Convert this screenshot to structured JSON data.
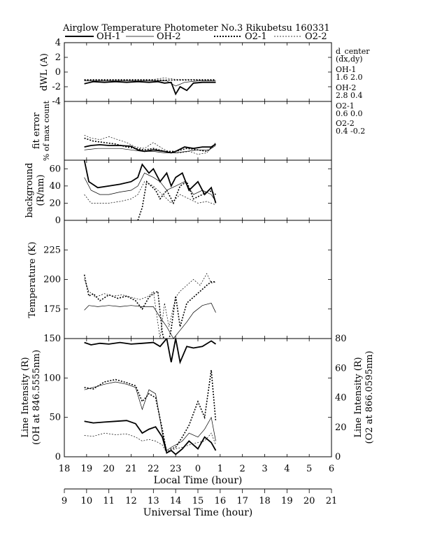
{
  "title": "Airglow Temperature Photometer No.3   Rikubetsu     160331",
  "legend": [
    {
      "name": "OH-1",
      "style": "thick-solid"
    },
    {
      "name": "OH-2",
      "style": "thin-solid"
    },
    {
      "name": "O2-1",
      "style": "thick-dotted"
    },
    {
      "name": "O2-2",
      "style": "thin-dotted"
    }
  ],
  "side_text": {
    "lines": [
      "d_center",
      "(dx,dy)",
      "OH-1",
      "1.6   2.0",
      "OH-2",
      "2.8   0.4",
      "O2-1",
      "0.6   0.0",
      "O2-2",
      "0.4   -0.2"
    ]
  },
  "axes": {
    "local_time_label": "Local Time (hour)",
    "universal_time_label": "Universal Time (hour)",
    "local_ticks": [
      "18",
      "19",
      "20",
      "21",
      "22",
      "23",
      "0",
      "1",
      "2",
      "3",
      "4",
      "5",
      "6"
    ],
    "ut_ticks": [
      "9",
      "10",
      "11",
      "12",
      "13",
      "14",
      "15",
      "16",
      "17",
      "18",
      "19",
      "20",
      "21"
    ]
  },
  "chart_data": [
    {
      "type": "line",
      "panel": "dWL",
      "ylabel": "dWL (A)",
      "ylim": [
        -4,
        4
      ],
      "yticks": [
        "-4",
        "-2",
        "0",
        "2",
        "4"
      ],
      "x_axis": "Local Time (hour), 18 to 30",
      "series": [
        {
          "name": "OH-1",
          "x": [
            18.9,
            19.3,
            19.8,
            20.3,
            20.8,
            21.3,
            21.8,
            22.2,
            22.5,
            22.8,
            23.0,
            23.2,
            23.5,
            23.8,
            24.2,
            24.6,
            24.8
          ],
          "y": [
            -1.6,
            -1.3,
            -1.4,
            -1.3,
            -1.4,
            -1.3,
            -1.4,
            -1.3,
            -1.5,
            -1.4,
            -3.0,
            -2.0,
            -2.5,
            -1.5,
            -1.4,
            -1.4,
            -1.4
          ]
        },
        {
          "name": "OH-2",
          "x": [
            18.9,
            20.0,
            21.0,
            22.0,
            22.6,
            23.0,
            23.4,
            24.0,
            24.8
          ],
          "y": [
            -1.2,
            -1.2,
            -1.2,
            -1.2,
            -1.2,
            -1.9,
            -1.4,
            -1.2,
            -1.2
          ]
        },
        {
          "name": "O2-1",
          "x": [
            18.9,
            20.0,
            21.0,
            22.0,
            23.0,
            24.0,
            24.8
          ],
          "y": [
            -1.1,
            -1.1,
            -1.1,
            -1.1,
            -1.1,
            -1.1,
            -1.1
          ]
        },
        {
          "name": "O2-2",
          "x": [
            18.9,
            20.0,
            21.0,
            22.0,
            22.5,
            23.0,
            23.5,
            24.0,
            24.8
          ],
          "y": [
            -1.0,
            -1.0,
            -1.0,
            -1.0,
            -0.8,
            -1.0,
            -1.0,
            -1.0,
            -1.0
          ]
        }
      ]
    },
    {
      "type": "line",
      "panel": "fit error",
      "ylabel": "fit error",
      "ylabel2": "% of max count",
      "ylim": [
        0,
        4
      ],
      "yticks": [],
      "series": [
        {
          "name": "OH-1",
          "x": [
            18.9,
            19.2,
            19.6,
            20.0,
            20.5,
            21.0,
            21.3,
            21.6,
            22.0,
            22.5,
            22.8,
            23.0,
            23.4,
            23.8,
            24.2,
            24.6,
            24.8
          ],
          "y": [
            0.9,
            1.0,
            1.05,
            1.0,
            1.0,
            0.95,
            0.7,
            0.6,
            0.7,
            0.6,
            0.5,
            0.6,
            0.9,
            0.8,
            0.9,
            0.9,
            1.1
          ]
        },
        {
          "name": "OH-2",
          "x": [
            18.9,
            19.5,
            20.0,
            20.5,
            21.0,
            21.5,
            22.0,
            22.5,
            23.0,
            23.5,
            24.0,
            24.5,
            24.8
          ],
          "y": [
            0.7,
            0.8,
            0.8,
            0.8,
            0.7,
            0.6,
            0.6,
            0.5,
            0.5,
            0.6,
            0.7,
            0.7,
            1.0
          ]
        },
        {
          "name": "O2-1",
          "x": [
            18.9,
            19.3,
            19.8,
            20.3,
            20.8,
            21.2,
            21.6,
            22.0,
            22.5,
            23.0,
            23.5,
            24.0,
            24.4,
            24.8
          ],
          "y": [
            1.5,
            1.3,
            1.2,
            1.1,
            0.9,
            0.8,
            0.7,
            0.8,
            0.6,
            0.6,
            0.8,
            0.7,
            0.6,
            1.1
          ]
        },
        {
          "name": "O2-2",
          "x": [
            18.9,
            19.2,
            19.6,
            20.0,
            20.4,
            20.8,
            21.2,
            21.6,
            22.0,
            22.4,
            22.8,
            23.2,
            23.6,
            24.0,
            24.4,
            24.8
          ],
          "y": [
            1.7,
            1.5,
            1.4,
            1.6,
            1.4,
            1.2,
            0.9,
            0.8,
            1.2,
            0.8,
            0.5,
            0.5,
            0.6,
            0.4,
            0.5,
            1.2
          ]
        }
      ]
    },
    {
      "type": "line",
      "panel": "background",
      "ylabel": "background",
      "ylabel2": "(R/nm)",
      "ylim": [
        0,
        70
      ],
      "yticks": [
        "0",
        "20",
        "40",
        "60"
      ],
      "series": [
        {
          "name": "OH-1",
          "x": [
            18.9,
            19.1,
            19.5,
            20.0,
            20.5,
            21.0,
            21.3,
            21.5,
            21.8,
            22.0,
            22.3,
            22.6,
            22.8,
            23.0,
            23.3,
            23.6,
            24.0,
            24.3,
            24.6,
            24.8
          ],
          "y": [
            70,
            45,
            38,
            40,
            42,
            45,
            50,
            65,
            55,
            60,
            45,
            55,
            40,
            50,
            55,
            35,
            45,
            30,
            38,
            20
          ]
        },
        {
          "name": "OH-2",
          "x": [
            18.9,
            19.2,
            19.6,
            20.0,
            20.5,
            21.0,
            21.3,
            21.6,
            22.0,
            22.3,
            22.6,
            23.0,
            23.4,
            23.8,
            24.2,
            24.6,
            24.8
          ],
          "y": [
            50,
            35,
            30,
            30,
            33,
            35,
            40,
            55,
            50,
            45,
            35,
            40,
            45,
            30,
            35,
            30,
            22
          ]
        },
        {
          "name": "O2-1",
          "x": [
            21.3,
            21.5,
            21.7,
            21.9,
            22.1,
            22.3,
            22.6,
            22.9,
            23.2,
            23.5,
            23.8,
            24.2,
            24.5,
            24.8
          ],
          "y": [
            0,
            15,
            45,
            40,
            35,
            25,
            35,
            20,
            40,
            45,
            25,
            30,
            35,
            30
          ]
        },
        {
          "name": "O2-2",
          "x": [
            18.9,
            19.2,
            19.6,
            20.0,
            20.5,
            21.0,
            21.3,
            21.6,
            22.0,
            22.4,
            22.8,
            23.2,
            23.6,
            24.0,
            24.4,
            24.8
          ],
          "y": [
            30,
            20,
            20,
            20,
            22,
            25,
            30,
            45,
            40,
            30,
            20,
            30,
            25,
            20,
            22,
            18
          ]
        }
      ]
    },
    {
      "type": "line",
      "panel": "Temperature",
      "ylabel": "Temperature (K)",
      "ylim": [
        150,
        250
      ],
      "yticks": [
        "175",
        "200",
        "225"
      ],
      "series": [
        {
          "name": "OH-2",
          "x": [
            18.9,
            19.1,
            19.5,
            20.0,
            20.5,
            21.0,
            21.5,
            22.0,
            22.3,
            22.6,
            22.9,
            23.2,
            23.5,
            23.8,
            24.2,
            24.6,
            24.8
          ],
          "y": [
            174,
            178,
            177,
            178,
            177,
            178,
            177,
            177,
            168,
            160,
            150,
            157,
            164,
            172,
            178,
            180,
            172
          ]
        },
        {
          "name": "O2-1",
          "x": [
            18.9,
            19.1,
            19.3,
            19.6,
            20.0,
            20.4,
            20.8,
            21.2,
            21.5,
            21.8,
            22.0,
            22.2,
            22.4,
            22.6,
            22.8,
            23.0,
            23.2,
            23.5,
            23.8,
            24.1,
            24.4,
            24.6,
            24.8
          ],
          "y": [
            204,
            186,
            188,
            182,
            187,
            184,
            186,
            182,
            175,
            185,
            188,
            190,
            155,
            140,
            158,
            186,
            160,
            180,
            185,
            190,
            195,
            198,
            198
          ]
        },
        {
          "name": "O2-2",
          "x": [
            18.9,
            19.1,
            19.4,
            19.8,
            20.2,
            20.6,
            21.0,
            21.4,
            21.8,
            22.0,
            22.3,
            22.5,
            22.7,
            23.0,
            23.2,
            23.5,
            23.8,
            24.1,
            24.4,
            24.6,
            24.8
          ],
          "y": [
            200,
            190,
            185,
            188,
            186,
            187,
            185,
            183,
            186,
            190,
            150,
            180,
            160,
            185,
            190,
            195,
            200,
            195,
            205,
            197,
            198
          ]
        }
      ]
    },
    {
      "type": "line",
      "panel": "Line Intensity",
      "ylabel": "Line Intensity (R)",
      "ylabel2": "(OH at 846.5555nm)",
      "ylabel_right": "Line Intensity (R)",
      "ylabel_right2": "(O2 at 866.0595nm)",
      "ylim": [
        0,
        150
      ],
      "ylim_right": [
        0,
        80
      ],
      "yticks": [
        "0",
        "50",
        "100",
        "150"
      ],
      "yticks_right": [
        "0",
        "20",
        "40",
        "60",
        "80"
      ],
      "series": [
        {
          "name": "OH-1 (upper)",
          "x": [
            18.9,
            19.2,
            19.6,
            20.0,
            20.5,
            21.0,
            21.5,
            22.0,
            22.3,
            22.6,
            22.8,
            23.0,
            23.2,
            23.5,
            23.8,
            24.2,
            24.6,
            24.8
          ],
          "y": [
            145,
            142,
            144,
            143,
            145,
            143,
            144,
            145,
            140,
            150,
            120,
            150,
            120,
            140,
            138,
            140,
            147,
            143
          ]
        },
        {
          "name": "OH-1",
          "x": [
            18.9,
            19.3,
            19.8,
            20.3,
            20.8,
            21.2,
            21.5,
            21.8,
            22.1,
            22.4,
            22.6,
            22.8,
            23.0,
            23.3,
            23.6,
            24.0,
            24.3,
            24.6,
            24.8
          ],
          "y": [
            45,
            43,
            44,
            45,
            46,
            42,
            30,
            35,
            38,
            25,
            5,
            8,
            3,
            10,
            20,
            10,
            25,
            18,
            8
          ]
        },
        {
          "name": "OH-2",
          "x": [
            18.9,
            19.3,
            19.8,
            20.3,
            20.8,
            21.2,
            21.5,
            21.8,
            22.1,
            22.4,
            22.6,
            22.8,
            23.0,
            23.3,
            23.6,
            24.0,
            24.3,
            24.6,
            24.8
          ],
          "y": [
            85,
            88,
            92,
            95,
            92,
            88,
            60,
            85,
            80,
            30,
            8,
            12,
            15,
            20,
            30,
            25,
            35,
            50,
            20
          ]
        },
        {
          "name": "O2-1",
          "x": [
            18.9,
            19.3,
            19.8,
            20.3,
            20.8,
            21.2,
            21.5,
            21.8,
            22.1,
            22.4,
            22.6,
            22.8,
            23.0,
            23.3,
            23.6,
            24.0,
            24.3,
            24.6,
            24.8
          ],
          "y": [
            88,
            86,
            95,
            98,
            94,
            90,
            70,
            80,
            75,
            35,
            5,
            10,
            12,
            25,
            40,
            70,
            50,
            110,
            45
          ]
        },
        {
          "name": "O2-2",
          "x": [
            18.9,
            19.3,
            19.8,
            20.3,
            20.8,
            21.2,
            21.5,
            21.8,
            22.1,
            22.4,
            22.6,
            22.8,
            23.0,
            23.3,
            23.6,
            24.0,
            24.3,
            24.6,
            24.8
          ],
          "y": [
            27,
            26,
            30,
            28,
            29,
            25,
            20,
            22,
            20,
            15,
            5,
            8,
            10,
            12,
            15,
            18,
            20,
            30,
            15
          ]
        }
      ]
    }
  ]
}
